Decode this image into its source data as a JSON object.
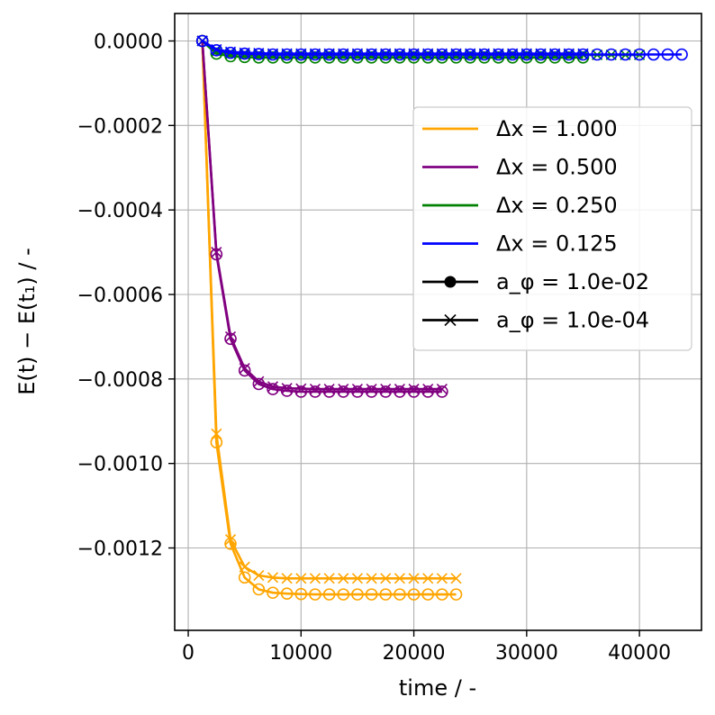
{
  "chart_data": {
    "type": "line",
    "xlabel": "time / -",
    "ylabel": "E(t) − E(t₁) / -",
    "xlim": [
      -1200,
      45500
    ],
    "ylim": [
      -0.001395,
      6.5e-05
    ],
    "xticks": [
      0,
      10000,
      20000,
      30000,
      40000
    ],
    "xtick_labels": [
      "0",
      "10000",
      "20000",
      "30000",
      "40000"
    ],
    "yticks": [
      0.0,
      -0.0002,
      -0.0004,
      -0.0006,
      -0.0008,
      -0.001,
      -0.0012
    ],
    "ytick_labels": [
      "0.0000",
      "−0.0002",
      "−0.0004",
      "−0.0006",
      "−0.0008",
      "−0.0010",
      "−0.0012"
    ],
    "grid": true,
    "legend_position": "center-right",
    "legend": [
      {
        "label": "Δx = 1.000",
        "color": "#FFA500",
        "kind": "line"
      },
      {
        "label": "Δx = 0.500",
        "color": "#800080",
        "kind": "line"
      },
      {
        "label": "Δx = 0.250",
        "color": "#008000",
        "kind": "line"
      },
      {
        "label": "Δx = 0.125",
        "color": "#0000FF",
        "kind": "line"
      },
      {
        "label": "a_φ = 1.0e-02",
        "color": "#000000",
        "kind": "circle"
      },
      {
        "label": "a_φ = 1.0e-04",
        "color": "#000000",
        "kind": "cross"
      }
    ],
    "series": [
      {
        "color": "#FFA500",
        "marker": "circle",
        "x": [
          1250,
          2500,
          3750,
          5000,
          6250,
          7500,
          8750,
          10000,
          11250,
          12500,
          13750,
          15000,
          16250,
          17500,
          18750,
          20000,
          21250,
          22500,
          23750
        ],
        "y": [
          0,
          -0.00095,
          -0.00119,
          -0.00127,
          -0.001298,
          -0.001306,
          -0.001308,
          -0.001309,
          -0.00131,
          -0.00131,
          -0.00131,
          -0.00131,
          -0.00131,
          -0.00131,
          -0.00131,
          -0.00131,
          -0.00131,
          -0.00131,
          -0.00131
        ]
      },
      {
        "color": "#FFA500",
        "marker": "cross",
        "x": [
          1250,
          2500,
          3750,
          5000,
          6250,
          7500,
          8750,
          10000,
          11250,
          12500,
          13750,
          15000,
          16250,
          17500,
          18750,
          20000,
          21250,
          22500,
          23750
        ],
        "y": [
          0,
          -0.00093,
          -0.00118,
          -0.001245,
          -0.001265,
          -0.00127,
          -0.001272,
          -0.001272,
          -0.001272,
          -0.001272,
          -0.001272,
          -0.001272,
          -0.001272,
          -0.001272,
          -0.001272,
          -0.001272,
          -0.001272,
          -0.001272,
          -0.001272
        ]
      },
      {
        "color": "#800080",
        "marker": "circle",
        "x": [
          1250,
          2500,
          3750,
          5000,
          6250,
          7500,
          8750,
          10000,
          11250,
          12500,
          13750,
          15000,
          16250,
          17500,
          18750,
          20000,
          21250,
          22500
        ],
        "y": [
          0,
          -0.000505,
          -0.000705,
          -0.00078,
          -0.000812,
          -0.000824,
          -0.000828,
          -0.00083,
          -0.00083,
          -0.00083,
          -0.00083,
          -0.00083,
          -0.00083,
          -0.00083,
          -0.00083,
          -0.00083,
          -0.00083,
          -0.00083
        ]
      },
      {
        "color": "#800080",
        "marker": "cross",
        "x": [
          1250,
          2500,
          3750,
          5000,
          6250,
          7500,
          8750,
          10000,
          11250,
          12500,
          13750,
          15000,
          16250,
          17500,
          18750,
          20000,
          21250,
          22500
        ],
        "y": [
          0,
          -0.0005,
          -0.0007,
          -0.000775,
          -0.000806,
          -0.000818,
          -0.000822,
          -0.000823,
          -0.000824,
          -0.000824,
          -0.000824,
          -0.000824,
          -0.000824,
          -0.000824,
          -0.000824,
          -0.000824,
          -0.000824,
          -0.000824
        ]
      },
      {
        "color": "#008000",
        "marker": "circle",
        "x": [
          1250,
          2500,
          3750,
          5000,
          6250,
          7500,
          8750,
          10000,
          11250,
          12500,
          13750,
          15000,
          16250,
          17500,
          18750,
          20000,
          21250,
          22500,
          23750,
          25000,
          26250,
          27500,
          28750,
          30000,
          31250,
          32500,
          33750,
          35000
        ],
        "y": [
          0,
          -3e-05,
          -3.6e-05,
          -3.8e-05,
          -3.9e-05,
          -3.9e-05,
          -3.9e-05,
          -3.9e-05,
          -3.9e-05,
          -3.9e-05,
          -3.9e-05,
          -3.9e-05,
          -3.9e-05,
          -3.9e-05,
          -3.9e-05,
          -3.9e-05,
          -3.9e-05,
          -3.9e-05,
          -3.9e-05,
          -3.9e-05,
          -3.9e-05,
          -3.9e-05,
          -3.9e-05,
          -3.9e-05,
          -3.9e-05,
          -3.9e-05,
          -3.9e-05,
          -3.9e-05
        ]
      },
      {
        "color": "#008000",
        "marker": "cross",
        "x": [
          1250,
          2500,
          3750,
          5000,
          6250,
          7500,
          8750,
          10000,
          11250,
          12500,
          13750,
          15000,
          16250,
          17500,
          18750,
          20000,
          21250,
          22500,
          23750,
          25000,
          26250,
          27500,
          28750,
          30000,
          31250,
          32500,
          33750,
          35000,
          36250,
          37500,
          38750,
          40000
        ],
        "y": [
          0,
          -2.5e-05,
          -3e-05,
          -3.2e-05,
          -3.3e-05,
          -3.3e-05,
          -3.3e-05,
          -3.3e-05,
          -3.3e-05,
          -3.3e-05,
          -3.3e-05,
          -3.3e-05,
          -3.3e-05,
          -3.3e-05,
          -3.3e-05,
          -3.3e-05,
          -3.3e-05,
          -3.3e-05,
          -3.3e-05,
          -3.3e-05,
          -3.3e-05,
          -3.3e-05,
          -3.3e-05,
          -3.3e-05,
          -3.3e-05,
          -3.3e-05,
          -3.3e-05,
          -3.3e-05,
          -3.3e-05,
          -3.3e-05,
          -3.3e-05,
          -3.3e-05
        ]
      },
      {
        "color": "#0000FF",
        "marker": "circle",
        "x": [
          1250,
          2500,
          3750,
          5000,
          6250,
          7500,
          8750,
          10000,
          11250,
          12500,
          13750,
          15000,
          16250,
          17500,
          18750,
          20000,
          21250,
          22500,
          23750,
          25000,
          26250,
          27500,
          28750,
          30000,
          31250,
          32500,
          33750,
          35000,
          36250,
          37500,
          38750,
          40000,
          41250,
          42500,
          43750
        ],
        "y": [
          0,
          -2.2e-05,
          -2.8e-05,
          -3e-05,
          -3.1e-05,
          -3.2e-05,
          -3.2e-05,
          -3.2e-05,
          -3.2e-05,
          -3.2e-05,
          -3.2e-05,
          -3.2e-05,
          -3.2e-05,
          -3.2e-05,
          -3.2e-05,
          -3.2e-05,
          -3.2e-05,
          -3.2e-05,
          -3.2e-05,
          -3.2e-05,
          -3.2e-05,
          -3.2e-05,
          -3.2e-05,
          -3.2e-05,
          -3.2e-05,
          -3.2e-05,
          -3.2e-05,
          -3.2e-05,
          -3.2e-05,
          -3.2e-05,
          -3.2e-05,
          -3.2e-05,
          -3.2e-05,
          -3.2e-05,
          -3.2e-05
        ]
      },
      {
        "color": "#0000FF",
        "marker": "cross",
        "x": [
          1250,
          2500,
          3750,
          5000,
          6250,
          7500,
          8750,
          10000,
          11250,
          12500,
          13750,
          15000,
          16250,
          17500,
          18750,
          20000,
          21250,
          22500,
          23750,
          25000,
          26250,
          27500,
          28750,
          30000,
          31250,
          32500,
          33750,
          35000
        ],
        "y": [
          0,
          -2e-05,
          -2.6e-05,
          -2.8e-05,
          -2.9e-05,
          -3e-05,
          -3e-05,
          -3e-05,
          -3e-05,
          -3e-05,
          -3e-05,
          -3e-05,
          -3e-05,
          -3e-05,
          -3e-05,
          -3e-05,
          -3e-05,
          -3e-05,
          -3e-05,
          -3e-05,
          -3e-05,
          -3e-05,
          -3e-05,
          -3e-05,
          -3e-05,
          -3e-05,
          -3e-05,
          -3e-05
        ]
      }
    ]
  }
}
